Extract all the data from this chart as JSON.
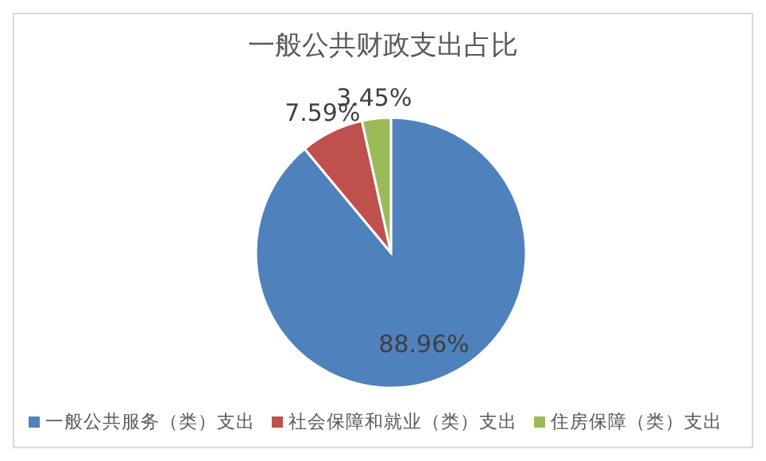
{
  "chart_data": {
    "type": "pie",
    "title": "一般公共财政支出占比",
    "categories": [
      "一般公共服务（类）支出",
      "社会保障和就业（类）支出",
      "住房保障（类）支出"
    ],
    "values": [
      88.96,
      7.59,
      3.45
    ],
    "colors": [
      "#4f81bd",
      "#c0504d",
      "#9bbb59"
    ],
    "value_labels": [
      "88.96%",
      "7.59%",
      "3.45%"
    ],
    "legend": "bottom"
  }
}
